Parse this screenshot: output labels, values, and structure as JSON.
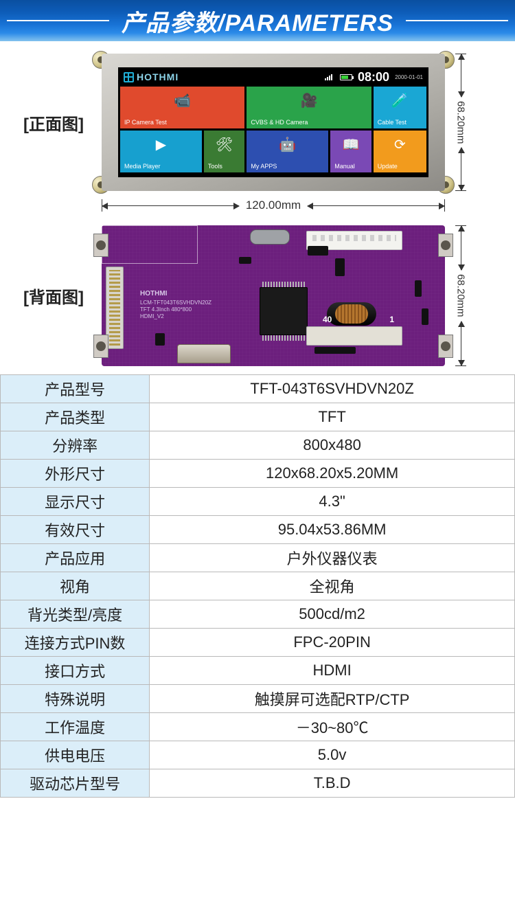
{
  "header": {
    "title": "产品参数/PARAMETERS"
  },
  "captions": {
    "front": "[正面图]",
    "back": "[背面图]"
  },
  "dimensions": {
    "width_label": "120.00mm",
    "height_label": "68.20mm",
    "height_label_back": "68.20mm"
  },
  "front_screen": {
    "brand": "HOTHMI",
    "clock": "08:00",
    "date": "2000-01-01",
    "tiles": [
      {
        "id": "ipcam",
        "label": "IP Camera Test",
        "color": "#e04a2d",
        "icon": "📹",
        "span": "t-a"
      },
      {
        "id": "cvbs",
        "label": "CVBS & HD Camera",
        "color": "#2aa34a",
        "icon": "🎥",
        "span": "t-b"
      },
      {
        "id": "cable",
        "label": "Cable Test",
        "color": "#1aa7d4",
        "icon": "🧪",
        "span": "t-c"
      },
      {
        "id": "media",
        "label": "Media Player",
        "color": "#17a0cf",
        "icon": "▶",
        "span": ""
      },
      {
        "id": "tools",
        "label": "Tools",
        "color": "#3a7b33",
        "icon": "🛠",
        "span": ""
      },
      {
        "id": "apps",
        "label": "My APPS",
        "color": "#2d4fb0",
        "icon": "🤖",
        "span": ""
      },
      {
        "id": "manual",
        "label": "Manual",
        "color": "#7a49b5",
        "icon": "📖",
        "span": ""
      },
      {
        "id": "update",
        "label": "Update",
        "color": "#f29b1d",
        "icon": "⟳",
        "span": ""
      }
    ]
  },
  "pcb_silk": {
    "brand": "HOTHMI",
    "lines": "LCM-TFT043T6SVHDVN20Z\nTFT 4.3Inch 480*800\nHDMI_V2",
    "pin40": "40",
    "pin1": "1"
  },
  "spec_colors": {
    "key_bg": "#dbeef9",
    "border": "#b9b9b9",
    "header_gradient_top": "#0a4fa0",
    "header_gradient_bottom": "#83c2ee",
    "pcb_color": "#6c1f7d"
  },
  "spec": [
    {
      "k": "产品型号",
      "v": "TFT-043T6SVHDVN20Z"
    },
    {
      "k": "产品类型",
      "v": "TFT"
    },
    {
      "k": "分辨率",
      "v": "800x480"
    },
    {
      "k": "外形尺寸",
      "v": "120x68.20x5.20MM"
    },
    {
      "k": "显示尺寸",
      "v": "4.3\""
    },
    {
      "k": "有效尺寸",
      "v": "95.04x53.86MM"
    },
    {
      "k": "产品应用",
      "v": "户外仪器仪表"
    },
    {
      "k": "视角",
      "v": "全视角"
    },
    {
      "k": "背光类型/亮度",
      "v": "500cd/m2"
    },
    {
      "k": "连接方式PIN数",
      "v": "FPC-20PIN"
    },
    {
      "k": "接口方式",
      "v": "HDMI"
    },
    {
      "k": "特殊说明",
      "v": "触摸屏可选配RTP/CTP"
    },
    {
      "k": "工作温度",
      "v": "－30~80℃"
    },
    {
      "k": "供电电压",
      "v": "5.0v"
    },
    {
      "k": "驱动芯片型号",
      "v": "T.B.D"
    }
  ]
}
